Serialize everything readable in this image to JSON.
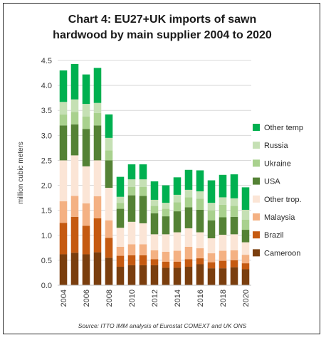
{
  "chart_data": {
    "type": "bar",
    "stacked": true,
    "title_line1": "Chart 4: EU27+UK imports of sawn",
    "title_line2": "hardwood by main supplier 2004 to 2020",
    "ylabel": "million cubic meters",
    "xlabel": "",
    "ylim": [
      0,
      4.5
    ],
    "yticks": [
      "0.0",
      "0.5",
      "1.0",
      "1.5",
      "2.0",
      "2.5",
      "3.0",
      "3.5",
      "4.0",
      "4.5"
    ],
    "ytick_values": [
      0,
      0.5,
      1.0,
      1.5,
      2.0,
      2.5,
      3.0,
      3.5,
      4.0,
      4.5
    ],
    "grid": true,
    "legend_position": "right",
    "categories": [
      "2004",
      "2005",
      "2006",
      "2007",
      "2008",
      "2009",
      "2010",
      "2011",
      "2012",
      "2013",
      "2014",
      "2015",
      "2016",
      "2017",
      "2018",
      "2019",
      "2020"
    ],
    "xtick_labels": [
      "2004",
      "2006",
      "2008",
      "2010",
      "2012",
      "2014",
      "2016",
      "2018",
      "2020"
    ],
    "xtick_categories": [
      "2004",
      "2006",
      "2008",
      "2010",
      "2012",
      "2014",
      "2016",
      "2018",
      "2020"
    ],
    "series": [
      {
        "name": "Cameroon",
        "color": "#7a3e0e",
        "values": [
          0.62,
          0.65,
          0.62,
          0.66,
          0.55,
          0.37,
          0.4,
          0.4,
          0.4,
          0.35,
          0.35,
          0.37,
          0.42,
          0.34,
          0.34,
          0.36,
          0.32
        ]
      },
      {
        "name": "Brazil",
        "color": "#c55a11",
        "values": [
          0.63,
          0.72,
          0.57,
          0.68,
          0.4,
          0.22,
          0.2,
          0.2,
          0.12,
          0.12,
          0.12,
          0.15,
          0.12,
          0.12,
          0.15,
          0.14,
          0.12
        ]
      },
      {
        "name": "Malaysia",
        "color": "#f4b183",
        "values": [
          0.43,
          0.42,
          0.45,
          0.44,
          0.35,
          0.18,
          0.22,
          0.22,
          0.18,
          0.2,
          0.22,
          0.25,
          0.2,
          0.18,
          0.2,
          0.2,
          0.17
        ]
      },
      {
        "name": "Other trop.",
        "color": "#fbe5d6",
        "values": [
          0.82,
          0.81,
          0.74,
          0.72,
          0.65,
          0.38,
          0.45,
          0.42,
          0.32,
          0.35,
          0.37,
          0.37,
          0.32,
          0.3,
          0.32,
          0.32,
          0.25
        ]
      },
      {
        "name": "USA",
        "color": "#548235",
        "values": [
          0.7,
          0.62,
          0.75,
          0.7,
          0.55,
          0.38,
          0.53,
          0.55,
          0.42,
          0.36,
          0.42,
          0.42,
          0.45,
          0.36,
          0.35,
          0.35,
          0.25
        ]
      },
      {
        "name": "Ukraine",
        "color": "#a9d18e",
        "values": [
          0.22,
          0.25,
          0.25,
          0.25,
          0.2,
          0.12,
          0.17,
          0.18,
          0.15,
          0.15,
          0.18,
          0.2,
          0.22,
          0.2,
          0.25,
          0.22,
          0.2
        ]
      },
      {
        "name": "Russia",
        "color": "#c5e0b4",
        "values": [
          0.25,
          0.25,
          0.25,
          0.2,
          0.25,
          0.12,
          0.15,
          0.15,
          0.12,
          0.12,
          0.15,
          0.15,
          0.15,
          0.15,
          0.15,
          0.15,
          0.2
        ]
      },
      {
        "name": "Other temp",
        "color": "#00b050",
        "values": [
          0.63,
          0.71,
          0.59,
          0.7,
          0.47,
          0.4,
          0.3,
          0.3,
          0.37,
          0.35,
          0.35,
          0.4,
          0.42,
          0.45,
          0.45,
          0.48,
          0.45
        ]
      }
    ],
    "source": "Source: ITTO IMM analysis of Eurostat COMEXT and UK ONS"
  }
}
